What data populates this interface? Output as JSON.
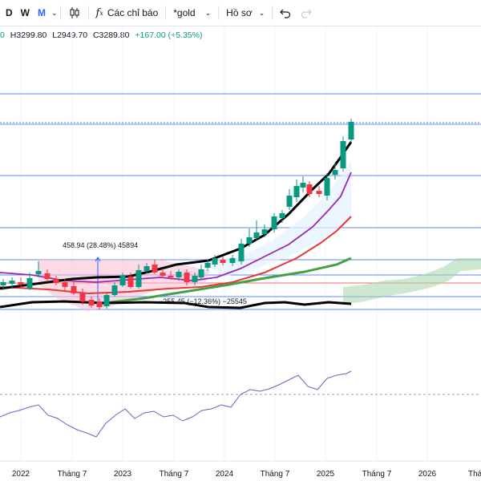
{
  "toolbar": {
    "intervals": [
      {
        "label": "D",
        "active": false
      },
      {
        "label": "W",
        "active": false
      },
      {
        "label": "M",
        "active": true
      }
    ],
    "indicators_label": "Các chỉ báo",
    "symbol_search": "*gold",
    "profile_label": "Hồ sơ"
  },
  "ohlc": {
    "open_fragment": "0",
    "high": "H3299.80",
    "low": "L2949.70",
    "close": "C3289.80",
    "change": "+167.00 (+5.35%)"
  },
  "chart": {
    "colors": {
      "up": "#089981",
      "down": "#f23645",
      "ema_black": "#000000",
      "ema_purple": "#9c27b0",
      "ema_red": "#e53935",
      "ema_green": "#43a047",
      "hline": "#2962ff",
      "rsi": "#7e57c2",
      "cloud": "#a5d6a7",
      "channel_fill": "#f8bbd0"
    },
    "x_axis": [
      "2022",
      "Tháng 7",
      "2023",
      "Tháng 7",
      "2024",
      "Tháng 7",
      "2025",
      "Tháng 7",
      "2026",
      "Tháng"
    ],
    "measure_up": "458.94 (28.48%) 45894",
    "measure_down": "−255.45 (−12.36%) −25545"
  }
}
